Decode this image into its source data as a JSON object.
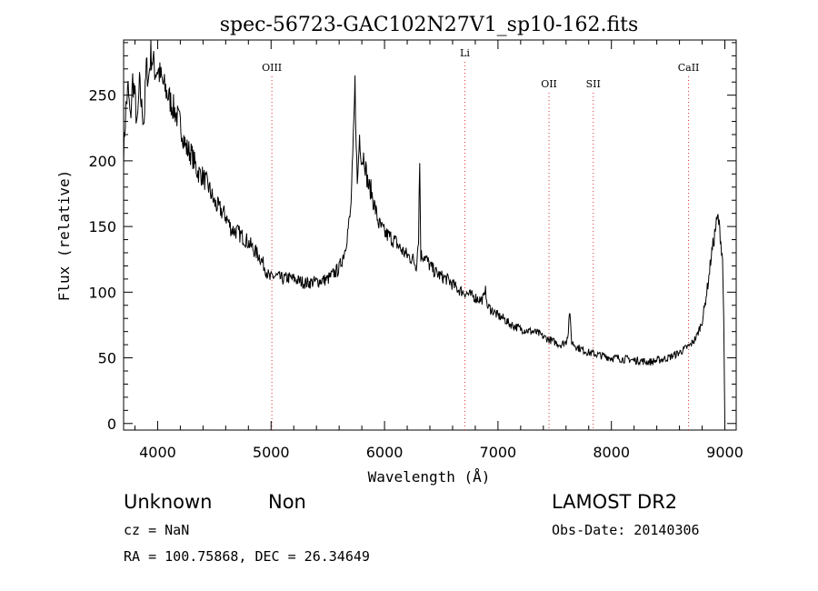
{
  "chart_data": {
    "type": "line",
    "title": "spec-56723-GAC102N27V1_sp10-162.fits",
    "xlabel": "Wavelength (Å)",
    "ylabel": "Flux (relative)",
    "xlim": [
      3700,
      9100
    ],
    "ylim": [
      -5,
      292
    ],
    "xticks": [
      4000,
      5000,
      6000,
      7000,
      8000,
      9000
    ],
    "yticks": [
      0,
      50,
      100,
      150,
      200,
      250
    ],
    "grid": false,
    "lines": [
      {
        "label": "OIII",
        "wavelength": 5007
      },
      {
        "label": "Li",
        "wavelength": 6708
      },
      {
        "label": "OII",
        "wavelength": 7450
      },
      {
        "label": "SII",
        "wavelength": 7840
      },
      {
        "label": "CaII",
        "wavelength": 8680
      }
    ],
    "line_color": "#e03030",
    "series": [
      {
        "x": [
          3700,
          3720,
          3740,
          3760,
          3780,
          3800,
          3820,
          3840,
          3860,
          3880,
          3900,
          3920,
          3940,
          3960,
          3980,
          4000,
          4050,
          4100,
          4150,
          4200,
          4250,
          4300,
          4350,
          4400,
          4450,
          4500,
          4550,
          4600,
          4650,
          4700,
          4750,
          4800,
          4850,
          4900,
          4950,
          4990,
          5010,
          5050,
          5100,
          5150,
          5200,
          5300,
          5400,
          5500,
          5600,
          5650,
          5700,
          5720,
          5740,
          5760,
          5780,
          5800,
          5820,
          5840,
          5860,
          5880,
          5900,
          5950,
          6000,
          6050,
          6100,
          6150,
          6200,
          6250,
          6280,
          6300,
          6310,
          6320,
          6350,
          6400,
          6450,
          6500,
          6550,
          6600,
          6650,
          6700,
          6750,
          6800,
          6850,
          6880,
          6890,
          6900,
          6950,
          7000,
          7050,
          7100,
          7150,
          7200,
          7250,
          7300,
          7350,
          7400,
          7450,
          7500,
          7550,
          7600,
          7620,
          7630,
          7650,
          7700,
          7750,
          7800,
          7850,
          7900,
          7950,
          8000,
          8050,
          8100,
          8150,
          8200,
          8250,
          8300,
          8350,
          8400,
          8450,
          8500,
          8550,
          8600,
          8650,
          8700,
          8750,
          8800,
          8820,
          8840,
          8860,
          8880,
          8900,
          8920,
          8940,
          8960,
          8980,
          8990,
          9000
        ],
        "y": [
          205,
          240,
          255,
          230,
          262,
          248,
          225,
          258,
          240,
          230,
          272,
          262,
          282,
          275,
          268,
          270,
          258,
          248,
          238,
          228,
          210,
          205,
          192,
          188,
          180,
          168,
          163,
          158,
          148,
          146,
          142,
          138,
          132,
          127,
          118,
          110,
          112,
          112,
          110,
          111,
          110,
          107,
          108,
          110,
          118,
          132,
          160,
          200,
          258,
          180,
          220,
          200,
          205,
          190,
          180,
          178,
          170,
          152,
          145,
          142,
          138,
          132,
          128,
          125,
          120,
          142,
          200,
          128,
          128,
          120,
          115,
          112,
          110,
          106,
          102,
          100,
          98,
          96,
          94,
          96,
          108,
          90,
          86,
          82,
          80,
          76,
          74,
          72,
          71,
          70,
          69,
          66,
          64,
          62,
          60,
          62,
          70,
          86,
          62,
          58,
          56,
          54,
          53,
          52,
          51,
          50,
          50,
          49,
          49,
          48,
          48,
          47,
          47,
          48,
          49,
          50,
          52,
          54,
          57,
          60,
          66,
          78,
          88,
          100,
          112,
          128,
          138,
          150,
          157,
          143,
          125,
          80,
          0
        ]
      }
    ]
  },
  "footer": {
    "object_class": "Unknown",
    "object_subclass": "Non",
    "survey": "LAMOST DR2",
    "redshift": "cz = NaN",
    "obs_date": "Obs-Date: 20140306",
    "coords": "RA = 100.75868, DEC =  26.34649"
  }
}
